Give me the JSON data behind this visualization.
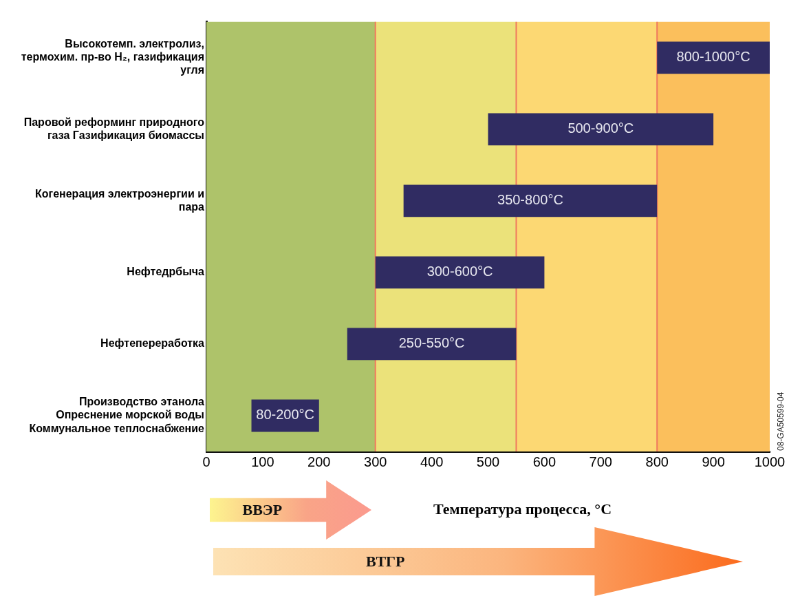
{
  "chart_data": {
    "type": "bar",
    "orientation": "horizontal",
    "categories": [
      "Высокотемп. электролиз, термохим. пр-во H₂, газификация угля",
      "Паровой реформинг природного газа Газификация биомассы",
      "Когенерация электроэнергии и пара",
      "Нефтедрбыча",
      "Нефтепереработка",
      "Производство этанола Опреснение морской воды Коммунальное теплоснабжение"
    ],
    "base": [
      800,
      500,
      350,
      300,
      250,
      80
    ],
    "values": [
      200,
      400,
      450,
      300,
      300,
      120
    ],
    "value_labels": [
      "800-1000°C",
      "500-900°C",
      "350-800°C",
      "300-600°C",
      "250-550°C",
      "80-200°C"
    ],
    "color": "#302c62",
    "xlabel": "Температура процесса, °C",
    "xlim": [
      0,
      1000
    ],
    "xticks": [
      0,
      100,
      200,
      300,
      400,
      500,
      600,
      700,
      800,
      900,
      1000
    ],
    "grid": false,
    "legend": false,
    "bands": [
      {
        "axis": "x",
        "from": 0,
        "to": 300,
        "color": "#aec36a"
      },
      {
        "axis": "x",
        "from": 300,
        "to": 550,
        "color": "#ebe27a"
      },
      {
        "axis": "x",
        "from": 550,
        "to": 800,
        "color": "#fcd873"
      },
      {
        "axis": "x",
        "from": 800,
        "to": 1000,
        "color": "#fbbf5c"
      }
    ],
    "ref_lines": [
      {
        "axis": "x",
        "value": 300,
        "color": "#ef7a5e"
      },
      {
        "axis": "x",
        "value": 550,
        "color": "#ef7a5e"
      },
      {
        "axis": "x",
        "value": 800,
        "color": "#ef7a5e"
      }
    ],
    "annotations": [
      "ВВЭР",
      "ВТГР",
      "08-GA50599-04"
    ]
  }
}
